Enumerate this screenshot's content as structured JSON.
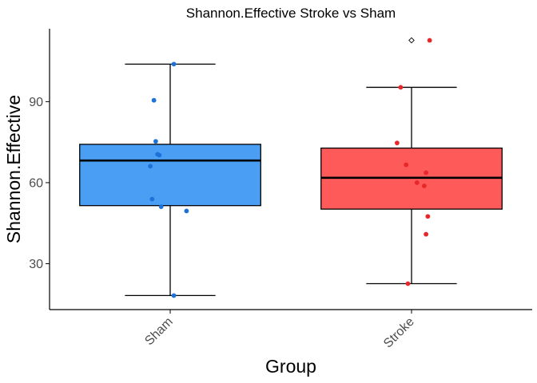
{
  "chart_data": {
    "type": "box",
    "title": "Shannon.Effective Stroke vs Sham",
    "xlabel": "Group",
    "ylabel": "Shannon.Effective",
    "categories": [
      "Sham",
      "Stroke"
    ],
    "ylim": [
      13,
      117
    ],
    "yticks": [
      30,
      60,
      90
    ],
    "grid": false,
    "legend": "none",
    "boxes": [
      {
        "name": "Sham",
        "color": "#4A9FF5",
        "point_color": "#1C72D8",
        "q1": 51.5,
        "median": 68.2,
        "q3": 74.2,
        "whisker_low": 18.2,
        "whisker_high": 103.9,
        "outliers": [],
        "points": [
          103.9,
          90.5,
          75.3,
          70.5,
          70.2,
          66.1,
          53.9,
          51.1,
          49.5,
          18.2
        ]
      },
      {
        "name": "Stroke",
        "color": "#FF5A5A",
        "point_color": "#E8272B",
        "q1": 50.2,
        "median": 61.8,
        "q3": 72.8,
        "whisker_low": 22.6,
        "whisker_high": 95.3,
        "outliers": [
          112.7
        ],
        "points": [
          112.7,
          95.3,
          74.7,
          66.6,
          63.7,
          60.0,
          58.8,
          47.5,
          40.9,
          22.6
        ]
      }
    ]
  }
}
